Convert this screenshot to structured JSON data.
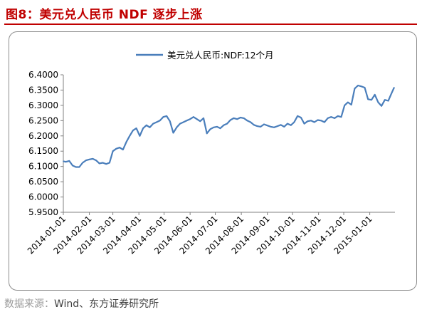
{
  "figure": {
    "title": "图8：美元兑人民币 NDF 逐步上涨",
    "source_label": "数据来源：",
    "source_text": "Wind、东方证券研究所"
  },
  "colors": {
    "title": "#c00000",
    "series": "#4a7ebb",
    "axis": "#808080"
  },
  "chart_data": {
    "type": "line",
    "title": "",
    "xlabel": "",
    "ylabel": "",
    "legend": "top-center",
    "grid": false,
    "ylim": [
      5.95,
      6.4
    ],
    "yticks": [
      "6.4000",
      "6.3500",
      "6.3000",
      "6.2500",
      "6.2000",
      "6.1500",
      "6.1000",
      "6.0500",
      "6.0000",
      "5.9500"
    ],
    "ytick_values": [
      6.4,
      6.35,
      6.3,
      6.25,
      6.2,
      6.15,
      6.1,
      6.05,
      6.0,
      5.95
    ],
    "xlim": [
      "2014-01-01",
      "2015-01-31"
    ],
    "xticks": [
      "2014-01-01",
      "2014-02-01",
      "2014-03-01",
      "2014-04-01",
      "2014-05-01",
      "2014-06-01",
      "2014-07-01",
      "2014-08-01",
      "2014-09-01",
      "2014-10-01",
      "2014-11-01",
      "2014-12-01",
      "2015-01-01"
    ],
    "series": [
      {
        "name": "美元兑人民币:NDF:12个月",
        "x": [
          "2014-01-01",
          "2014-01-04",
          "2014-01-08",
          "2014-01-12",
          "2014-01-16",
          "2014-01-20",
          "2014-01-24",
          "2014-01-28",
          "2014-02-01",
          "2014-02-05",
          "2014-02-09",
          "2014-02-13",
          "2014-02-17",
          "2014-02-21",
          "2014-02-25",
          "2014-03-01",
          "2014-03-05",
          "2014-03-09",
          "2014-03-13",
          "2014-03-17",
          "2014-03-21",
          "2014-03-25",
          "2014-03-29",
          "2014-04-02",
          "2014-04-06",
          "2014-04-10",
          "2014-04-14",
          "2014-04-18",
          "2014-04-22",
          "2014-04-26",
          "2014-04-30",
          "2014-05-04",
          "2014-05-08",
          "2014-05-12",
          "2014-05-16",
          "2014-05-20",
          "2014-05-24",
          "2014-05-28",
          "2014-06-01",
          "2014-06-05",
          "2014-06-09",
          "2014-06-13",
          "2014-06-17",
          "2014-06-21",
          "2014-06-25",
          "2014-06-29",
          "2014-07-03",
          "2014-07-07",
          "2014-07-11",
          "2014-07-15",
          "2014-07-19",
          "2014-07-23",
          "2014-07-27",
          "2014-07-31",
          "2014-08-04",
          "2014-08-08",
          "2014-08-12",
          "2014-08-16",
          "2014-08-20",
          "2014-08-24",
          "2014-08-28",
          "2014-09-01",
          "2014-09-05",
          "2014-09-09",
          "2014-09-13",
          "2014-09-17",
          "2014-09-21",
          "2014-09-25",
          "2014-09-29",
          "2014-10-03",
          "2014-10-07",
          "2014-10-11",
          "2014-10-15",
          "2014-10-19",
          "2014-10-23",
          "2014-10-27",
          "2014-10-31",
          "2014-11-04",
          "2014-11-08",
          "2014-11-12",
          "2014-11-16",
          "2014-11-20",
          "2014-11-24",
          "2014-11-28",
          "2014-12-02",
          "2014-12-06",
          "2014-12-10",
          "2014-12-14",
          "2014-12-18",
          "2014-12-22",
          "2014-12-26",
          "2014-12-30",
          "2015-01-03",
          "2015-01-07",
          "2015-01-11",
          "2015-01-15",
          "2015-01-19",
          "2015-01-23",
          "2015-01-27",
          "2015-01-30"
        ],
        "values": [
          6.117,
          6.115,
          6.118,
          6.103,
          6.098,
          6.098,
          6.112,
          6.12,
          6.123,
          6.125,
          6.12,
          6.11,
          6.112,
          6.108,
          6.112,
          6.15,
          6.158,
          6.162,
          6.155,
          6.18,
          6.2,
          6.218,
          6.225,
          6.2,
          6.225,
          6.235,
          6.228,
          6.24,
          6.245,
          6.25,
          6.262,
          6.265,
          6.248,
          6.21,
          6.228,
          6.24,
          6.245,
          6.25,
          6.255,
          6.262,
          6.255,
          6.248,
          6.258,
          6.208,
          6.222,
          6.228,
          6.23,
          6.225,
          6.235,
          6.24,
          6.252,
          6.258,
          6.255,
          6.26,
          6.258,
          6.25,
          6.245,
          6.236,
          6.232,
          6.23,
          6.238,
          6.234,
          6.23,
          6.228,
          6.232,
          6.236,
          6.23,
          6.24,
          6.235,
          6.245,
          6.265,
          6.26,
          6.24,
          6.248,
          6.25,
          6.245,
          6.252,
          6.25,
          6.245,
          6.258,
          6.262,
          6.258,
          6.265,
          6.262,
          6.3,
          6.31,
          6.302,
          6.355,
          6.365,
          6.362,
          6.358,
          6.32,
          6.318,
          6.335,
          6.31,
          6.298,
          6.318,
          6.315,
          6.34,
          6.358
        ]
      }
    ]
  }
}
